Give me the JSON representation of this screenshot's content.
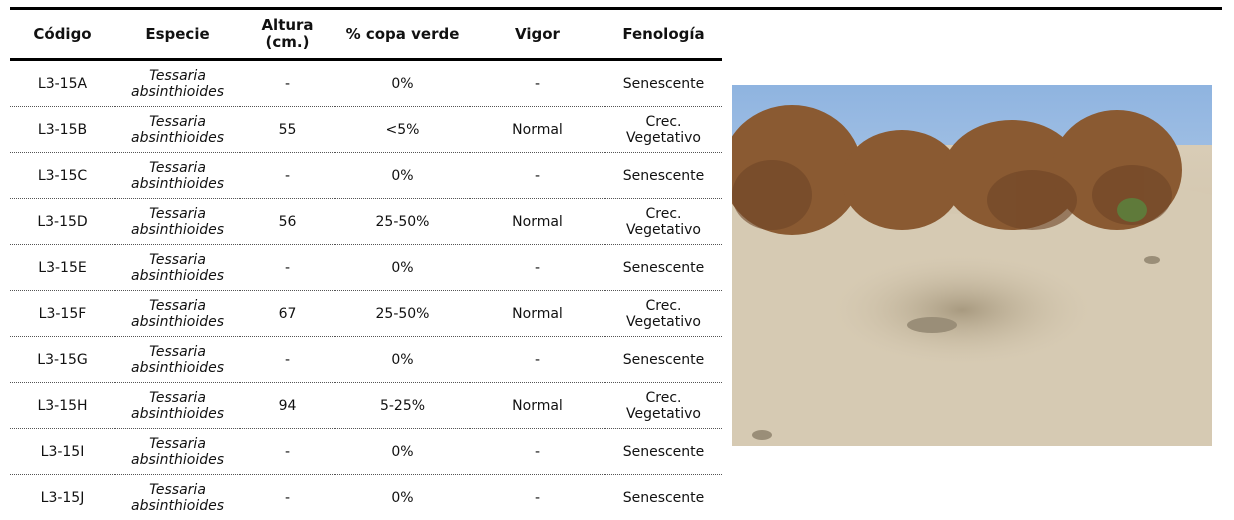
{
  "table": {
    "columns": [
      "Código",
      "Especie",
      "Altura (cm.)",
      "% copa verde",
      "Vigor",
      "Fenología"
    ],
    "rows": [
      [
        "L3-15A",
        "Tessaria absinthioides",
        "-",
        "0%",
        "-",
        "Senescente"
      ],
      [
        "L3-15B",
        "Tessaria absinthioides",
        "55",
        "<5%",
        "Normal",
        "Crec. Vegetativo"
      ],
      [
        "L3-15C",
        "Tessaria absinthioides",
        "-",
        "0%",
        "-",
        "Senescente"
      ],
      [
        "L3-15D",
        "Tessaria absinthioides",
        "56",
        "25-50%",
        "Normal",
        "Crec. Vegetativo"
      ],
      [
        "L3-15E",
        "Tessaria absinthioides",
        "-",
        "0%",
        "-",
        "Senescente"
      ],
      [
        "L3-15F",
        "Tessaria absinthioides",
        "67",
        "25-50%",
        "Normal",
        "Crec. Vegetativo"
      ],
      [
        "L3-15G",
        "Tessaria absinthioides",
        "-",
        "0%",
        "-",
        "Senescente"
      ],
      [
        "L3-15H",
        "Tessaria absinthioides",
        "94",
        "5-25%",
        "Normal",
        "Crec. Vegetativo"
      ],
      [
        "L3-15I",
        "Tessaria absinthioides",
        "-",
        "0%",
        "-",
        "Senescente"
      ],
      [
        "L3-15J",
        "Tessaria absinthioides",
        "-",
        "0%",
        "-",
        "Senescente"
      ]
    ]
  }
}
